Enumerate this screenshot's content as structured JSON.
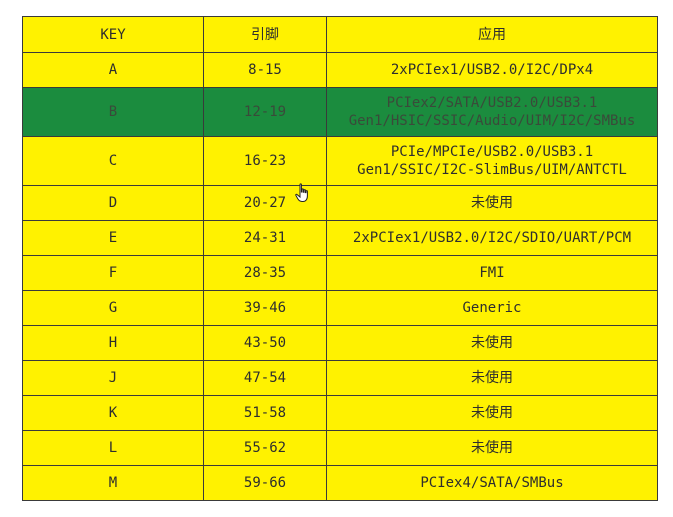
{
  "table": {
    "headers": [
      "KEY",
      "引脚",
      "应用"
    ],
    "rows": [
      {
        "key": "A",
        "pins": "8-15",
        "application": "2xPCIex1/USB2.0/I2C/DPx4",
        "highlighted": false
      },
      {
        "key": "B",
        "pins": "12-19",
        "application": "PCIex2/SATA/USB2.0/USB3.1\nGen1/HSIC/SSIC/Audio/UIM/I2C/SMBus",
        "highlighted": true
      },
      {
        "key": "C",
        "pins": "16-23",
        "application": "PCIe/MPCIe/USB2.0/USB3.1\nGen1/SSIC/I2C-SlimBus/UIM/ANTCTL",
        "highlighted": false
      },
      {
        "key": "D",
        "pins": "20-27",
        "application": "未使用",
        "highlighted": false
      },
      {
        "key": "E",
        "pins": "24-31",
        "application": "2xPCIex1/USB2.0/I2C/SDIO/UART/PCM",
        "highlighted": false
      },
      {
        "key": "F",
        "pins": "28-35",
        "application": "FMI",
        "highlighted": false
      },
      {
        "key": "G",
        "pins": "39-46",
        "application": "Generic",
        "highlighted": false
      },
      {
        "key": "H",
        "pins": "43-50",
        "application": "未使用",
        "highlighted": false
      },
      {
        "key": "J",
        "pins": "47-54",
        "application": "未使用",
        "highlighted": false
      },
      {
        "key": "K",
        "pins": "51-58",
        "application": "未使用",
        "highlighted": false
      },
      {
        "key": "L",
        "pins": "55-62",
        "application": "未使用",
        "highlighted": false
      },
      {
        "key": "M",
        "pins": "59-66",
        "application": "PCIex4/SATA/SMBus",
        "highlighted": false
      }
    ]
  },
  "colors": {
    "row_background": "#fff200",
    "highlight_background": "#1b8c3e",
    "border": "#3a3a3a"
  },
  "cursor": {
    "icon": "hand-pointer-icon"
  }
}
